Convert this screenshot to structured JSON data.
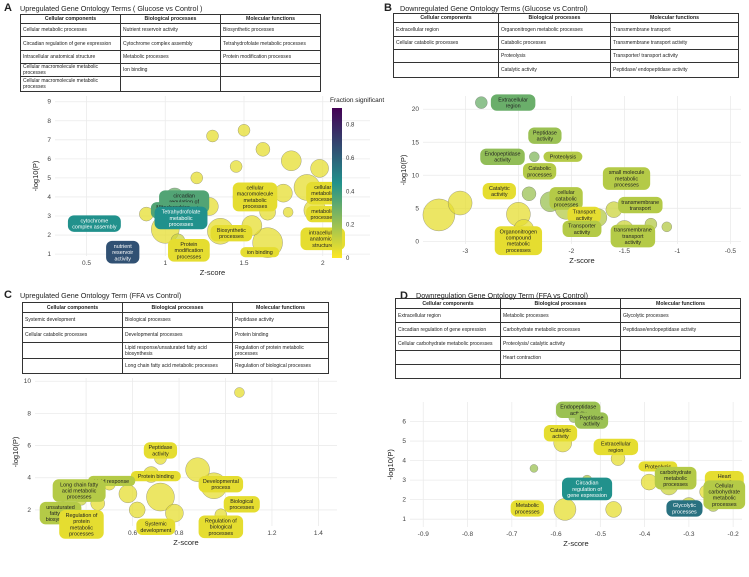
{
  "panels": [
    {
      "letter": "A",
      "title": "Upregulated Gene Ontology Terms ( Glucose vs Control )",
      "table": {
        "headers": [
          "Cellular components",
          "Biological processes",
          "Molecular functions"
        ],
        "rows": [
          [
            "Cellular metabolic processes",
            "Nutrient reservoir activity",
            "Biosynthetic processes"
          ],
          [
            "Circadian regulation of gene expression",
            "Cytochrome complex assembly",
            "Tetrahydrofolate metabolic processes"
          ],
          [
            "Intracellular anatomical structure",
            "Metabolic processes",
            "Protein modification processes"
          ],
          [
            "Cellular macromolecule metabolic processes",
            "Ion binding",
            ""
          ],
          [
            "Cellular macromolecule metabolic processes",
            "",
            ""
          ]
        ]
      }
    },
    {
      "letter": "B",
      "title": "Downregulated Gene Ontology Terms (Glucose vs Control)",
      "table": {
        "headers": [
          "Cellular components",
          "Biological processes",
          "Molecular functions"
        ],
        "rows": [
          [
            "Extracellular region",
            "Organonitrogen metabolic processes",
            "Transmembrane transport"
          ],
          [
            "Cellular catabolic processes",
            "Catabolic processes",
            "Transmembrane transport activity"
          ],
          [
            "",
            "Proteolysis",
            "Transporter/ transport activity"
          ],
          [
            "",
            "Catalytic activity",
            "Peptidase/ endopeptidase activity"
          ]
        ]
      }
    },
    {
      "letter": "C",
      "title": "Upregulated Gene Ontology Term (FFA vs Control)",
      "table": {
        "headers": [
          "Cellular components",
          "Biological processes",
          "Molecular functions"
        ],
        "rows": [
          [
            "Systemic development",
            "Biological processes",
            "Peptidase activity"
          ],
          [
            "Cellular catabolic processes",
            "Developmental processes",
            "Protein binding"
          ],
          [
            "",
            "Lipid response/unsaturated fatty acid biosynthesis",
            "Regulation of protein metabolic processes"
          ],
          [
            "",
            "Long chain fatty acid metabolic processes",
            "Regulation of biological processes"
          ]
        ]
      }
    },
    {
      "letter": "D",
      "title": "Downregulation Gene Ontology Term (FFA vs Control)",
      "table": {
        "headers": [
          "Cellular components",
          "Biological processes",
          "Molecular functions"
        ],
        "rows": [
          [
            "Extracellular region",
            "Metabolic processes",
            "Glycolytic processes"
          ],
          [
            "Circadian regulation of gene expression",
            "Carbohydrate metabolic processes",
            "Peptidase/endopeptidase activity"
          ],
          [
            "Cellular carbohydrate metabolic processes",
            "Proteolysis/ catalytic activity",
            ""
          ],
          [
            "",
            "Heart contraction",
            ""
          ],
          [
            "",
            "",
            ""
          ]
        ]
      }
    }
  ],
  "colors": {
    "scale_low": "#fde725",
    "scale_mid": "#21918c",
    "scale_high": "#440154",
    "grid": "#ebebeb"
  },
  "chart_data": [
    {
      "panel": "A",
      "type": "scatter",
      "xlabel": "Z-score",
      "ylabel": "-log10(P)",
      "xlim": [
        0.3,
        2.3
      ],
      "ylim": [
        0.9,
        9.3
      ],
      "xticks": [
        0.5,
        1,
        1.5,
        2
      ],
      "yticks": [
        1,
        2,
        3,
        4,
        5,
        6,
        7,
        8,
        9
      ],
      "legend": {
        "title": "Fraction significant",
        "ticks": [
          0,
          0.2,
          0.4,
          0.6,
          0.8
        ],
        "position": "right"
      },
      "points": [
        {
          "x": 1.06,
          "y": 4.0,
          "size": 9,
          "frac": 0.3
        },
        {
          "x": 1.0,
          "y": 2.3,
          "size": 14,
          "frac": 0.05
        },
        {
          "x": 0.88,
          "y": 3.1,
          "size": 7,
          "frac": 0.05
        },
        {
          "x": 1.2,
          "y": 5.0,
          "size": 6,
          "frac": 0.05
        },
        {
          "x": 1.28,
          "y": 3.5,
          "size": 9,
          "frac": 0.05
        },
        {
          "x": 1.35,
          "y": 2.2,
          "size": 13,
          "frac": 0.05
        },
        {
          "x": 1.5,
          "y": 4.0,
          "size": 11,
          "frac": 0.05
        },
        {
          "x": 1.55,
          "y": 2.5,
          "size": 10,
          "frac": 0.05
        },
        {
          "x": 1.65,
          "y": 3.2,
          "size": 8,
          "frac": 0.05
        },
        {
          "x": 1.75,
          "y": 4.2,
          "size": 9,
          "frac": 0.05
        },
        {
          "x": 1.8,
          "y": 5.9,
          "size": 10,
          "frac": 0.05
        },
        {
          "x": 1.9,
          "y": 4.5,
          "size": 13,
          "frac": 0.05
        },
        {
          "x": 1.95,
          "y": 3.3,
          "size": 11,
          "frac": 0.05
        },
        {
          "x": 1.98,
          "y": 5.5,
          "size": 9,
          "frac": 0.05
        },
        {
          "x": 1.62,
          "y": 6.5,
          "size": 7,
          "frac": 0.05
        },
        {
          "x": 1.45,
          "y": 5.6,
          "size": 6,
          "frac": 0.05
        },
        {
          "x": 1.65,
          "y": 1.6,
          "size": 15,
          "frac": 0.05
        },
        {
          "x": 1.08,
          "y": 1.7,
          "size": 7,
          "frac": 0.1
        },
        {
          "x": 1.3,
          "y": 7.2,
          "size": 6,
          "frac": 0.05
        },
        {
          "x": 1.5,
          "y": 7.5,
          "size": 6,
          "frac": 0.05
        },
        {
          "x": 0.72,
          "y": 1.25,
          "size": 4,
          "frac": 0.6
        },
        {
          "x": 1.05,
          "y": 3.6,
          "size": 5,
          "frac": 0.4
        },
        {
          "x": 1.07,
          "y": 2.9,
          "size": 5,
          "frac": 0.45
        },
        {
          "x": 1.78,
          "y": 3.2,
          "size": 5,
          "frac": 0.05
        }
      ],
      "labels": [
        {
          "text": "cytochrome complex assembly",
          "x": 0.55,
          "y": 2.6,
          "frac": 0.45
        },
        {
          "text": "nutrient reservoir activity",
          "x": 0.73,
          "y": 1.1,
          "frac": 0.65
        },
        {
          "text": "circadian regulation of gene expression",
          "x": 1.12,
          "y": 3.75,
          "frac": 0.35
        },
        {
          "text": "Mitochondrion membrane",
          "x": 1.05,
          "y": 3.3,
          "frac": 0.35
        },
        {
          "text": "Tetrahydrofolate metabolic processes",
          "x": 1.1,
          "y": 2.9,
          "frac": 0.45
        },
        {
          "text": "Biosynthetic processes",
          "x": 1.42,
          "y": 2.1,
          "frac": 0.05
        },
        {
          "text": "cellular macromolecule metabolic processes",
          "x": 1.57,
          "y": 4.0,
          "frac": 0.05
        },
        {
          "text": "cellular metabolic processes",
          "x": 2.0,
          "y": 4.2,
          "frac": 0.05
        },
        {
          "text": "metabolic processes",
          "x": 2.0,
          "y": 3.1,
          "frac": 0.05
        },
        {
          "text": "intracellular anatomical structure",
          "x": 2.0,
          "y": 1.8,
          "frac": 0.05
        },
        {
          "text": "Protein modification processes",
          "x": 1.15,
          "y": 1.2,
          "frac": 0.05
        },
        {
          "text": "ion binding",
          "x": 1.6,
          "y": 1.1,
          "frac": 0.05
        }
      ]
    },
    {
      "panel": "B",
      "type": "scatter",
      "xlabel": "Z-score",
      "ylabel": "-log10(P)",
      "xlim": [
        -3.4,
        -0.4
      ],
      "ylim": [
        -0.4,
        22
      ],
      "xticks": [
        -3,
        -2.5,
        -2,
        -1.5,
        -1,
        -0.5
      ],
      "yticks": [
        0,
        5,
        10,
        15,
        20
      ],
      "points": [
        {
          "x": -3.25,
          "y": 4.0,
          "size": 16,
          "frac": 0.05
        },
        {
          "x": -3.05,
          "y": 5.8,
          "size": 12,
          "frac": 0.05
        },
        {
          "x": -2.5,
          "y": 4.1,
          "size": 12,
          "frac": 0.05
        },
        {
          "x": -2.45,
          "y": 1.8,
          "size": 10,
          "frac": 0.05
        },
        {
          "x": -2.4,
          "y": 7.2,
          "size": 7,
          "frac": 0.2
        },
        {
          "x": -2.35,
          "y": 12.8,
          "size": 5,
          "frac": 0.25
        },
        {
          "x": -2.2,
          "y": 6.0,
          "size": 10,
          "frac": 0.2
        },
        {
          "x": -2.05,
          "y": 5.0,
          "size": 11,
          "frac": 0.15
        },
        {
          "x": -1.9,
          "y": 3.0,
          "size": 13,
          "frac": 0.1
        },
        {
          "x": -1.75,
          "y": 3.6,
          "size": 9,
          "frac": 0.15
        },
        {
          "x": -1.6,
          "y": 4.8,
          "size": 8,
          "frac": 0.1
        },
        {
          "x": -1.5,
          "y": 1.8,
          "size": 9,
          "frac": 0.1
        },
        {
          "x": -2.85,
          "y": 21.0,
          "size": 6,
          "frac": 0.3
        },
        {
          "x": -2.25,
          "y": 16.0,
          "size": 6,
          "frac": 0.2
        },
        {
          "x": -1.25,
          "y": 2.6,
          "size": 6,
          "frac": 0.15
        },
        {
          "x": -1.1,
          "y": 2.2,
          "size": 5,
          "frac": 0.15
        }
      ],
      "labels": [
        {
          "text": "Extracellular region",
          "x": -2.55,
          "y": 21.0,
          "frac": 0.3
        },
        {
          "text": "Peptidase activity",
          "x": -2.25,
          "y": 16.0,
          "frac": 0.2
        },
        {
          "text": "Endopeptidase activity",
          "x": -2.65,
          "y": 12.8,
          "frac": 0.22
        },
        {
          "text": "Proteolysis",
          "x": -2.08,
          "y": 12.8,
          "frac": 0.15
        },
        {
          "text": "Catabolic processes",
          "x": -2.3,
          "y": 10.6,
          "frac": 0.15
        },
        {
          "text": "small molecule metabolic processes",
          "x": -1.48,
          "y": 9.5,
          "frac": 0.15
        },
        {
          "text": "Catalytic activity",
          "x": -2.68,
          "y": 7.6,
          "frac": 0.05
        },
        {
          "text": "cellular catabolic processes",
          "x": -2.05,
          "y": 6.5,
          "frac": 0.15
        },
        {
          "text": "transmembrane transport",
          "x": -1.35,
          "y": 5.5,
          "frac": 0.15
        },
        {
          "text": "Transport activity",
          "x": -1.88,
          "y": 4.0,
          "frac": 0.05
        },
        {
          "text": "Transporter activity",
          "x": -1.9,
          "y": 1.9,
          "frac": 0.15
        },
        {
          "text": "transmembrane transport activity",
          "x": -1.42,
          "y": 0.8,
          "frac": 0.15
        },
        {
          "text": "Organonitrogen compound metabolic processes",
          "x": -2.5,
          "y": 0.1,
          "frac": 0.05
        }
      ]
    },
    {
      "panel": "C",
      "type": "scatter",
      "xlabel": "Z-score",
      "ylabel": "-log10(P)",
      "xlim": [
        0.18,
        1.48
      ],
      "ylim": [
        1.0,
        10.2
      ],
      "xticks": [
        0.4,
        0.6,
        0.8,
        1.0,
        1.2,
        1.4
      ],
      "yticks": [
        2,
        4,
        6,
        8,
        10
      ],
      "points": [
        {
          "x": 0.72,
          "y": 2.8,
          "size": 14,
          "frac": 0.05
        },
        {
          "x": 0.88,
          "y": 4.5,
          "size": 12,
          "frac": 0.05
        },
        {
          "x": 0.95,
          "y": 3.5,
          "size": 13,
          "frac": 0.05
        },
        {
          "x": 0.58,
          "y": 3.0,
          "size": 9,
          "frac": 0.05
        },
        {
          "x": 0.68,
          "y": 4.2,
          "size": 8,
          "frac": 0.05
        },
        {
          "x": 0.72,
          "y": 5.2,
          "size": 6,
          "frac": 0.05
        },
        {
          "x": 0.5,
          "y": 3.6,
          "size": 6,
          "frac": 0.05
        },
        {
          "x": 0.45,
          "y": 2.4,
          "size": 7,
          "frac": 0.05
        },
        {
          "x": 0.62,
          "y": 2.0,
          "size": 8,
          "frac": 0.05
        },
        {
          "x": 0.78,
          "y": 1.8,
          "size": 9,
          "frac": 0.05
        },
        {
          "x": 0.38,
          "y": 2.6,
          "size": 5,
          "frac": 0.1
        },
        {
          "x": 0.3,
          "y": 2.2,
          "size": 5,
          "frac": 0.15
        },
        {
          "x": 1.06,
          "y": 9.3,
          "size": 5,
          "frac": 0.05
        },
        {
          "x": 0.98,
          "y": 1.7,
          "size": 6,
          "frac": 0.05
        }
      ],
      "labels": [
        {
          "text": "Peptidase activity",
          "x": 0.72,
          "y": 5.7,
          "frac": 0.05
        },
        {
          "text": "Protein binding",
          "x": 0.7,
          "y": 4.1,
          "frac": 0.05
        },
        {
          "text": "Developmental process",
          "x": 0.98,
          "y": 3.6,
          "frac": 0.05
        },
        {
          "text": "Lipid response",
          "x": 0.51,
          "y": 3.8,
          "frac": 0.15
        },
        {
          "text": "Long chain fatty acid metabolic processes",
          "x": 0.37,
          "y": 3.2,
          "frac": 0.15
        },
        {
          "text": "Biological processes",
          "x": 1.07,
          "y": 2.35,
          "frac": 0.05
        },
        {
          "text": "unsaturated fatty acid biosynthesis",
          "x": 0.29,
          "y": 1.8,
          "frac": 0.15
        },
        {
          "text": "Regulation of protein metabolic processes",
          "x": 0.38,
          "y": 1.1,
          "frac": 0.05
        },
        {
          "text": "Systemic development",
          "x": 0.7,
          "y": 0.95,
          "frac": 0.05
        },
        {
          "text": "Regulation of biological processes",
          "x": 0.98,
          "y": 0.95,
          "frac": 0.05
        }
      ]
    },
    {
      "panel": "D",
      "type": "scatter",
      "xlabel": "Z-score",
      "ylabel": "-log10(P)",
      "xlim": [
        -0.93,
        -0.18
      ],
      "ylim": [
        0.6,
        7.0
      ],
      "xticks": [
        -0.9,
        -0.8,
        -0.7,
        -0.6,
        -0.5,
        -0.4,
        -0.3,
        -0.2
      ],
      "yticks": [
        1,
        2,
        3,
        4,
        5,
        6
      ],
      "points": [
        {
          "x": -0.585,
          "y": 4.9,
          "size": 9,
          "frac": 0.05
        },
        {
          "x": -0.58,
          "y": 1.5,
          "size": 11,
          "frac": 0.05
        },
        {
          "x": -0.47,
          "y": 1.5,
          "size": 8,
          "frac": 0.05
        },
        {
          "x": -0.46,
          "y": 4.1,
          "size": 7,
          "frac": 0.05
        },
        {
          "x": -0.39,
          "y": 2.9,
          "size": 8,
          "frac": 0.05
        },
        {
          "x": -0.345,
          "y": 2.7,
          "size": 9,
          "frac": 0.1
        },
        {
          "x": -0.3,
          "y": 1.7,
          "size": 8,
          "frac": 0.1
        },
        {
          "x": -0.26,
          "y": 2.4,
          "size": 7,
          "frac": 0.05
        },
        {
          "x": -0.53,
          "y": 3.0,
          "size": 5,
          "frac": 0.15
        },
        {
          "x": -0.56,
          "y": 6.2,
          "size": 5,
          "frac": 0.2
        },
        {
          "x": -0.245,
          "y": 1.7,
          "size": 6,
          "frac": 0.15
        },
        {
          "x": -0.65,
          "y": 3.6,
          "size": 4,
          "frac": 0.2
        }
      ],
      "labels": [
        {
          "text": "Endopeptidase activity",
          "x": -0.55,
          "y": 6.6,
          "frac": 0.2
        },
        {
          "text": "Peptidase activity",
          "x": -0.52,
          "y": 6.05,
          "frac": 0.2
        },
        {
          "text": "Catalytic activity",
          "x": -0.59,
          "y": 5.4,
          "frac": 0.05
        },
        {
          "text": "Extracellular region",
          "x": -0.465,
          "y": 4.7,
          "frac": 0.05
        },
        {
          "text": "Proteolysis",
          "x": -0.37,
          "y": 3.7,
          "frac": 0.05
        },
        {
          "text": "carbohydrate metabolic processes",
          "x": -0.33,
          "y": 3.1,
          "frac": 0.15
        },
        {
          "text": "Heart contraction",
          "x": -0.22,
          "y": 3.05,
          "frac": 0.05
        },
        {
          "text": "Circadian regulation of gene expression",
          "x": -0.53,
          "y": 2.55,
          "frac": 0.45
        },
        {
          "text": "Cellular carbohydrate metabolic processes",
          "x": -0.22,
          "y": 2.25,
          "frac": 0.15
        },
        {
          "text": "Glycolytic processes",
          "x": -0.31,
          "y": 1.55,
          "frac": 0.55
        },
        {
          "text": "Metabolic processes",
          "x": -0.665,
          "y": 1.55,
          "frac": 0.05
        }
      ]
    }
  ]
}
